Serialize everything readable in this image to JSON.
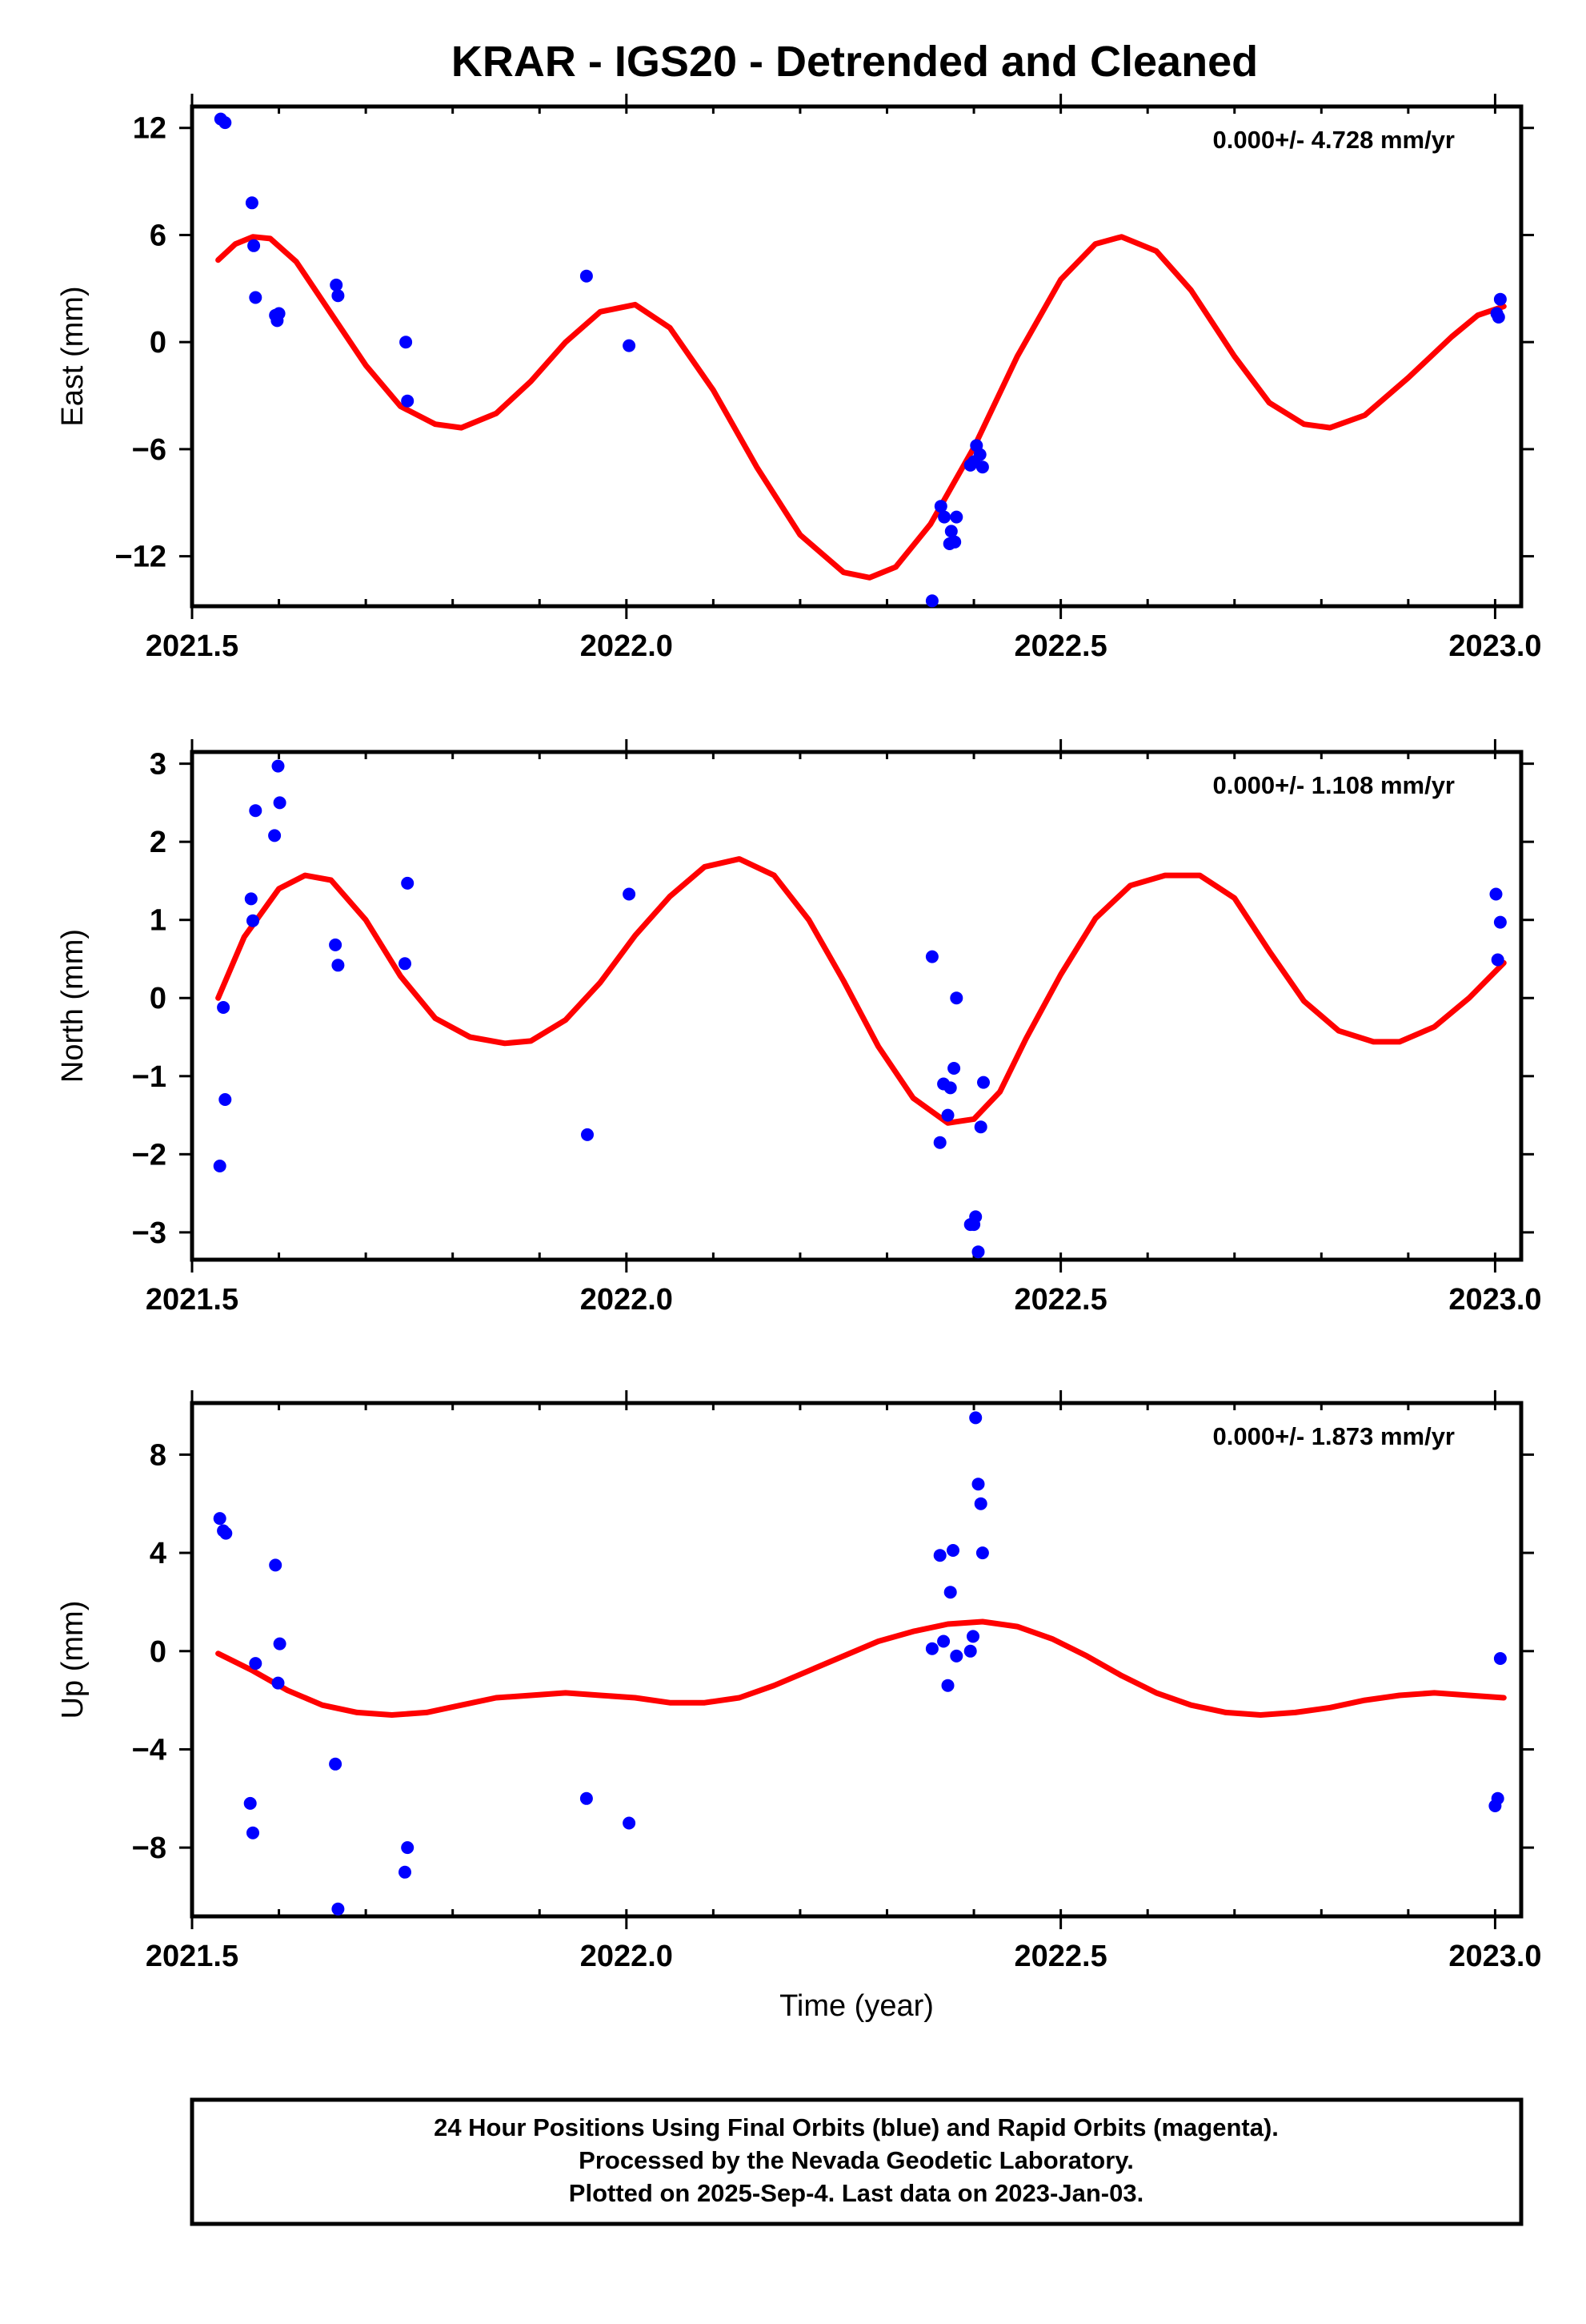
{
  "title": "KRAR - IGS20 - Detrended and Cleaned",
  "colors": {
    "observed": "#0000ff",
    "fit": "#ff0000",
    "frame": "#000000"
  },
  "footer": {
    "lines": [
      "24 Hour Positions Using Final Orbits (blue) and Rapid Orbits (magenta).",
      "Processed by the Nevada Geodetic Laboratory.",
      "Plotted on 2025-Sep-4. Last data on 2023-Jan-03."
    ]
  },
  "chart_data": [
    {
      "type": "scatter",
      "panel": "east",
      "ylabel": "East (mm)",
      "xlabel": "",
      "rate": "0.000+/- 4.728 mm/yr",
      "xlim": [
        2021.5,
        2023.03
      ],
      "ylim": [
        -14.8,
        13.2
      ],
      "xticks": [
        2021.5,
        2022.0,
        2022.5,
        2023.0
      ],
      "xtick_labels": [
        "2021.5",
        "2022.0",
        "2022.5",
        "2023.0"
      ],
      "yticks": [
        12,
        6,
        0,
        -6,
        -12
      ],
      "ytick_labels": [
        "12",
        "6",
        "0",
        "−6",
        "−12"
      ],
      "points": [
        [
          2021.533,
          12.5
        ],
        [
          2021.538,
          12.3
        ],
        [
          2021.569,
          7.8
        ],
        [
          2021.571,
          5.4
        ],
        [
          2021.573,
          2.5
        ],
        [
          2021.596,
          1.5
        ],
        [
          2021.598,
          1.2
        ],
        [
          2021.6,
          1.6
        ],
        [
          2021.666,
          3.2
        ],
        [
          2021.668,
          2.6
        ],
        [
          2021.746,
          0.0
        ],
        [
          2021.748,
          -3.3
        ],
        [
          2021.954,
          3.7
        ],
        [
          2022.003,
          -0.2
        ],
        [
          2022.352,
          -14.5
        ],
        [
          2022.362,
          -9.2
        ],
        [
          2022.366,
          -9.8
        ],
        [
          2022.372,
          -11.3
        ],
        [
          2022.374,
          -10.6
        ],
        [
          2022.378,
          -11.2
        ],
        [
          2022.38,
          -9.8
        ],
        [
          2022.396,
          -6.9
        ],
        [
          2022.4,
          -6.7
        ],
        [
          2022.403,
          -5.8
        ],
        [
          2022.407,
          -6.3
        ],
        [
          2022.41,
          -7.0
        ],
        [
          2023.002,
          1.6
        ],
        [
          2023.004,
          1.4
        ],
        [
          2023.006,
          2.4
        ]
      ],
      "fit": [
        [
          2021.53,
          4.6
        ],
        [
          2021.55,
          5.5
        ],
        [
          2021.57,
          5.9
        ],
        [
          2021.59,
          5.8
        ],
        [
          2021.62,
          4.5
        ],
        [
          2021.66,
          1.6
        ],
        [
          2021.7,
          -1.3
        ],
        [
          2021.74,
          -3.6
        ],
        [
          2021.78,
          -4.6
        ],
        [
          2021.81,
          -4.8
        ],
        [
          2021.85,
          -4.0
        ],
        [
          2021.89,
          -2.2
        ],
        [
          2021.93,
          0.0
        ],
        [
          2021.97,
          1.7
        ],
        [
          2022.01,
          2.1
        ],
        [
          2022.05,
          0.8
        ],
        [
          2022.1,
          -2.7
        ],
        [
          2022.15,
          -7.0
        ],
        [
          2022.2,
          -10.8
        ],
        [
          2022.25,
          -12.9
        ],
        [
          2022.28,
          -13.2
        ],
        [
          2022.31,
          -12.6
        ],
        [
          2022.35,
          -10.2
        ],
        [
          2022.4,
          -5.9
        ],
        [
          2022.45,
          -0.8
        ],
        [
          2022.5,
          3.5
        ],
        [
          2022.54,
          5.5
        ],
        [
          2022.57,
          5.9
        ],
        [
          2022.61,
          5.1
        ],
        [
          2022.65,
          2.9
        ],
        [
          2022.7,
          -0.8
        ],
        [
          2022.74,
          -3.4
        ],
        [
          2022.78,
          -4.6
        ],
        [
          2022.81,
          -4.8
        ],
        [
          2022.85,
          -4.1
        ],
        [
          2022.9,
          -2.0
        ],
        [
          2022.95,
          0.3
        ],
        [
          2022.98,
          1.5
        ],
        [
          2023.01,
          2.0
        ]
      ]
    },
    {
      "type": "scatter",
      "panel": "north",
      "ylabel": "North (mm)",
      "xlabel": "",
      "rate": "0.000+/- 1.108 mm/yr",
      "xlim": [
        2021.5,
        2023.03
      ],
      "ylim": [
        -3.35,
        3.15
      ],
      "xticks": [
        2021.5,
        2022.0,
        2022.5,
        2023.0
      ],
      "xtick_labels": [
        "2021.5",
        "2022.0",
        "2022.5",
        "2023.0"
      ],
      "yticks": [
        3,
        2,
        1,
        0,
        -1,
        -2,
        -3
      ],
      "ytick_labels": [
        "3",
        "2",
        "1",
        "0",
        "−1",
        "−2",
        "−3"
      ],
      "points": [
        [
          2021.532,
          -2.15
        ],
        [
          2021.536,
          -0.12
        ],
        [
          2021.538,
          -1.3
        ],
        [
          2021.568,
          1.27
        ],
        [
          2021.57,
          0.99
        ],
        [
          2021.573,
          2.4
        ],
        [
          2021.595,
          2.08
        ],
        [
          2021.599,
          2.97
        ],
        [
          2021.601,
          2.5
        ],
        [
          2021.665,
          0.68
        ],
        [
          2021.668,
          0.42
        ],
        [
          2021.745,
          0.44
        ],
        [
          2021.748,
          1.47
        ],
        [
          2021.955,
          -1.75
        ],
        [
          2022.003,
          1.33
        ],
        [
          2022.352,
          0.53
        ],
        [
          2022.361,
          -1.85
        ],
        [
          2022.365,
          -1.1
        ],
        [
          2022.37,
          -1.5
        ],
        [
          2022.373,
          -1.15
        ],
        [
          2022.377,
          -0.9
        ],
        [
          2022.38,
          0.0
        ],
        [
          2022.396,
          -2.9
        ],
        [
          2022.4,
          -2.9
        ],
        [
          2022.402,
          -2.8
        ],
        [
          2022.405,
          -3.25
        ],
        [
          2022.408,
          -1.65
        ],
        [
          2022.411,
          -1.08
        ],
        [
          2023.001,
          1.33
        ],
        [
          2023.003,
          0.49
        ],
        [
          2023.006,
          0.97
        ]
      ],
      "fit": [
        [
          2021.53,
          0.0
        ],
        [
          2021.56,
          0.78
        ],
        [
          2021.6,
          1.4
        ],
        [
          2021.63,
          1.57
        ],
        [
          2021.66,
          1.51
        ],
        [
          2021.7,
          1.0
        ],
        [
          2021.74,
          0.28
        ],
        [
          2021.78,
          -0.26
        ],
        [
          2021.82,
          -0.5
        ],
        [
          2021.86,
          -0.58
        ],
        [
          2021.89,
          -0.55
        ],
        [
          2021.93,
          -0.28
        ],
        [
          2021.97,
          0.2
        ],
        [
          2022.01,
          0.8
        ],
        [
          2022.05,
          1.3
        ],
        [
          2022.09,
          1.68
        ],
        [
          2022.13,
          1.78
        ],
        [
          2022.17,
          1.57
        ],
        [
          2022.21,
          1.0
        ],
        [
          2022.25,
          0.22
        ],
        [
          2022.29,
          -0.62
        ],
        [
          2022.33,
          -1.28
        ],
        [
          2022.37,
          -1.6
        ],
        [
          2022.4,
          -1.55
        ],
        [
          2022.43,
          -1.2
        ],
        [
          2022.46,
          -0.52
        ],
        [
          2022.5,
          0.3
        ],
        [
          2022.54,
          1.02
        ],
        [
          2022.58,
          1.44
        ],
        [
          2022.62,
          1.57
        ],
        [
          2022.66,
          1.57
        ],
        [
          2022.7,
          1.28
        ],
        [
          2022.74,
          0.6
        ],
        [
          2022.78,
          -0.04
        ],
        [
          2022.82,
          -0.42
        ],
        [
          2022.86,
          -0.56
        ],
        [
          2022.89,
          -0.56
        ],
        [
          2022.93,
          -0.37
        ],
        [
          2022.97,
          0.0
        ],
        [
          2023.01,
          0.45
        ]
      ]
    },
    {
      "type": "scatter",
      "panel": "up",
      "ylabel": "Up (mm)",
      "xlabel": "Time (year)",
      "rate": "0.000+/- 1.873 mm/yr",
      "xlim": [
        2021.5,
        2023.03
      ],
      "ylim": [
        -10.8,
        10.1
      ],
      "xticks": [
        2021.5,
        2022.0,
        2022.5,
        2023.0
      ],
      "xtick_labels": [
        "2021.5",
        "2022.0",
        "2022.5",
        "2023.0"
      ],
      "yticks": [
        8,
        4,
        0,
        -4,
        -8
      ],
      "ytick_labels": [
        "8",
        "4",
        "0",
        "−4",
        "−8"
      ],
      "points": [
        [
          2021.532,
          5.4
        ],
        [
          2021.536,
          4.9
        ],
        [
          2021.539,
          4.8
        ],
        [
          2021.567,
          -6.2
        ],
        [
          2021.57,
          -7.4
        ],
        [
          2021.573,
          -0.5
        ],
        [
          2021.596,
          3.5
        ],
        [
          2021.599,
          -1.3
        ],
        [
          2021.601,
          0.3
        ],
        [
          2021.665,
          -4.6
        ],
        [
          2021.668,
          -10.5
        ],
        [
          2021.745,
          -9.0
        ],
        [
          2021.748,
          -8.0
        ],
        [
          2021.954,
          -6.0
        ],
        [
          2022.003,
          -7.0
        ],
        [
          2022.352,
          0.1
        ],
        [
          2022.361,
          3.9
        ],
        [
          2022.365,
          0.4
        ],
        [
          2022.37,
          -1.4
        ],
        [
          2022.373,
          2.4
        ],
        [
          2022.376,
          4.1
        ],
        [
          2022.38,
          -0.2
        ],
        [
          2022.396,
          0.0
        ],
        [
          2022.399,
          0.6
        ],
        [
          2022.402,
          9.5
        ],
        [
          2022.405,
          6.8
        ],
        [
          2022.408,
          6.0
        ],
        [
          2022.41,
          4.0
        ],
        [
          2023.0,
          -6.3
        ],
        [
          2023.003,
          -6.0
        ],
        [
          2023.006,
          -0.3
        ]
      ],
      "fit": [
        [
          2021.53,
          -0.1
        ],
        [
          2021.57,
          -0.8
        ],
        [
          2021.61,
          -1.6
        ],
        [
          2021.65,
          -2.2
        ],
        [
          2021.69,
          -2.5
        ],
        [
          2021.73,
          -2.6
        ],
        [
          2021.77,
          -2.5
        ],
        [
          2021.81,
          -2.2
        ],
        [
          2021.85,
          -1.9
        ],
        [
          2021.89,
          -1.8
        ],
        [
          2021.93,
          -1.7
        ],
        [
          2021.97,
          -1.8
        ],
        [
          2022.01,
          -1.9
        ],
        [
          2022.05,
          -2.1
        ],
        [
          2022.09,
          -2.1
        ],
        [
          2022.13,
          -1.9
        ],
        [
          2022.17,
          -1.4
        ],
        [
          2022.21,
          -0.8
        ],
        [
          2022.25,
          -0.2
        ],
        [
          2022.29,
          0.4
        ],
        [
          2022.33,
          0.8
        ],
        [
          2022.37,
          1.1
        ],
        [
          2022.41,
          1.2
        ],
        [
          2022.45,
          1.0
        ],
        [
          2022.49,
          0.5
        ],
        [
          2022.53,
          -0.2
        ],
        [
          2022.57,
          -1.0
        ],
        [
          2022.61,
          -1.7
        ],
        [
          2022.65,
          -2.2
        ],
        [
          2022.69,
          -2.5
        ],
        [
          2022.73,
          -2.6
        ],
        [
          2022.77,
          -2.5
        ],
        [
          2022.81,
          -2.3
        ],
        [
          2022.85,
          -2.0
        ],
        [
          2022.89,
          -1.8
        ],
        [
          2022.93,
          -1.7
        ],
        [
          2022.97,
          -1.8
        ],
        [
          2023.01,
          -1.9
        ]
      ]
    }
  ]
}
